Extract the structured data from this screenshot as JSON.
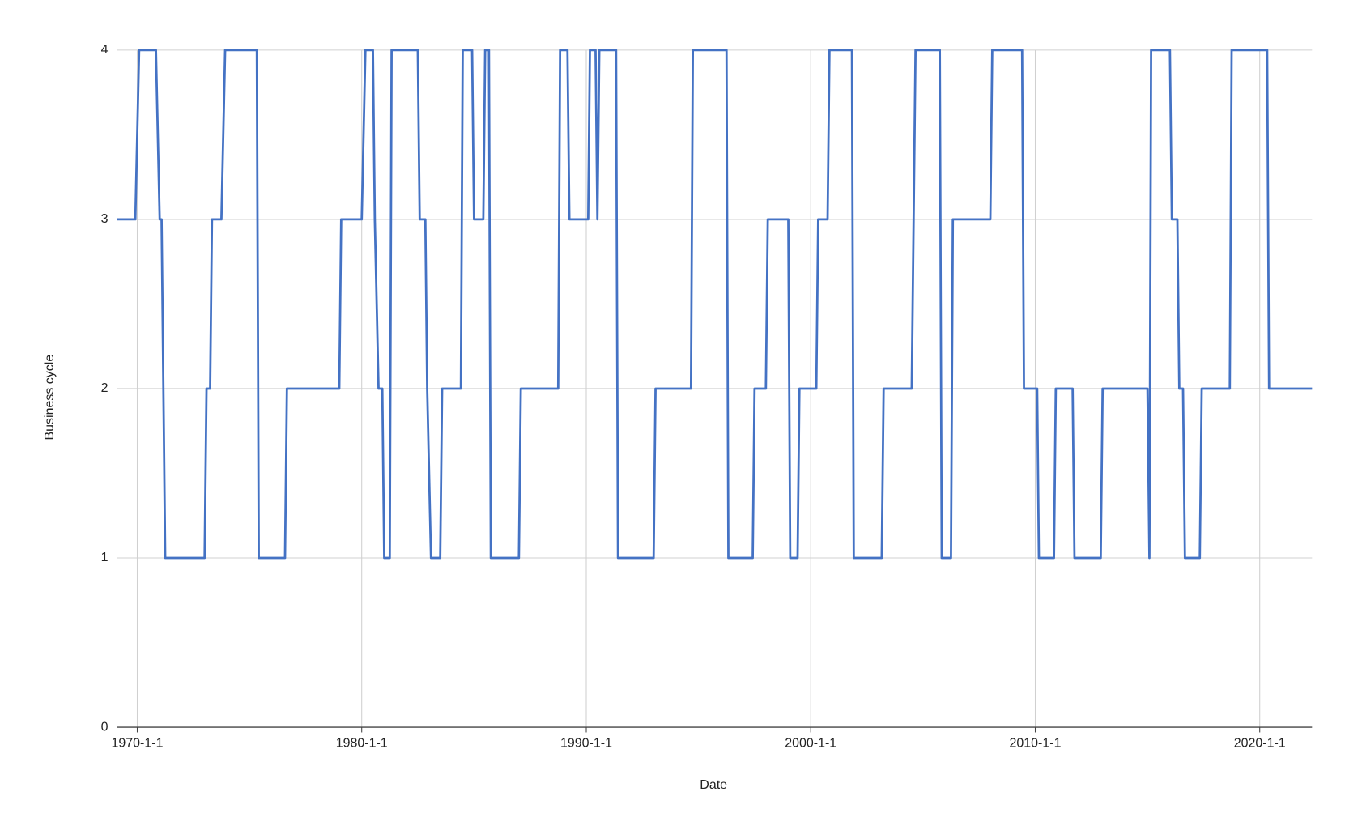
{
  "chart_data": {
    "type": "line",
    "x_label": "Date",
    "y_label": "Business cycle",
    "color": "#4472c4",
    "grid": true,
    "xlim": [
      "1969-2-1",
      "2022-5-1"
    ],
    "xticks": [
      "1970-1-1",
      "1980-1-1",
      "1990-1-1",
      "2000-1-1",
      "2010-1-1",
      "2020-1-1"
    ],
    "ylim": [
      0,
      4
    ],
    "yticks": [
      0,
      1,
      2,
      3,
      4
    ],
    "x": [
      "1969-2-1",
      "1969-12-1",
      "1970-2-1",
      "1970-11-1",
      "1971-1-1",
      "1971-2-1",
      "1971-4-1",
      "1973-1-1",
      "1973-2-1",
      "1973-4-1",
      "1973-5-1",
      "1973-10-1",
      "1973-12-1",
      "1975-5-1",
      "1975-6-1",
      "1976-8-1",
      "1976-9-1",
      "1979-1-1",
      "1979-2-1",
      "1980-1-1",
      "1980-3-1",
      "1980-7-1",
      "1980-8-1",
      "1980-10-1",
      "1980-12-1",
      "1981-1-1",
      "1981-4-1",
      "1981-5-1",
      "1982-7-1",
      "1982-8-1",
      "1982-11-1",
      "1982-12-1",
      "1983-2-1",
      "1983-7-1",
      "1983-8-1",
      "1984-6-1",
      "1984-7-1",
      "1984-12-1",
      "1985-1-1",
      "1985-6-1",
      "1985-7-1",
      "1985-9-1",
      "1985-10-1",
      "1987-1-1",
      "1987-2-1",
      "1988-10-1",
      "1988-11-1",
      "1989-3-1",
      "1989-4-1",
      "1990-2-1",
      "1990-3-1",
      "1990-6-1",
      "1990-7-1",
      "1990-8-1",
      "1991-5-1",
      "1991-6-1",
      "1993-1-1",
      "1993-2-1",
      "1994-9-1",
      "1994-10-1",
      "1996-4-1",
      "1996-5-1",
      "1997-6-1",
      "1997-7-1",
      "1998-1-1",
      "1998-2-1",
      "1999-1-1",
      "1999-2-1",
      "1999-6-1",
      "1999-7-1",
      "2000-4-1",
      "2000-5-1",
      "2000-10-1",
      "2000-11-1",
      "2001-11-1",
      "2001-12-1",
      "2003-3-1",
      "2003-4-1",
      "2004-7-1",
      "2004-8-1",
      "2004-9-1",
      "2005-10-1",
      "2005-11-1",
      "2006-4-1",
      "2006-5-1",
      "2008-1-1",
      "2008-2-1",
      "2009-6-1",
      "2009-7-1",
      "2010-2-1",
      "2010-3-1",
      "2010-11-1",
      "2010-12-1",
      "2011-9-1",
      "2011-10-1",
      "2012-12-1",
      "2013-1-1",
      "2015-1-1",
      "2015-2-1",
      "2015-3-1",
      "2016-1-1",
      "2016-2-1",
      "2016-5-1",
      "2016-6-1",
      "2016-8-1",
      "2016-9-1",
      "2017-5-1",
      "2017-6-1",
      "2018-9-1",
      "2018-10-1",
      "2020-5-1",
      "2020-6-1",
      "2022-5-1"
    ],
    "values": [
      3,
      3,
      4,
      4,
      3,
      3,
      1,
      1,
      2,
      2,
      3,
      3,
      4,
      4,
      1,
      1,
      2,
      2,
      3,
      3,
      4,
      4,
      3,
      2,
      2,
      1,
      1,
      4,
      4,
      3,
      3,
      2,
      1,
      1,
      2,
      2,
      4,
      4,
      3,
      3,
      4,
      4,
      1,
      1,
      2,
      2,
      4,
      4,
      3,
      3,
      4,
      4,
      3,
      4,
      4,
      1,
      1,
      2,
      2,
      4,
      4,
      1,
      1,
      2,
      2,
      3,
      3,
      1,
      1,
      2,
      2,
      3,
      3,
      4,
      4,
      1,
      1,
      2,
      2,
      3,
      4,
      4,
      1,
      1,
      3,
      3,
      4,
      4,
      2,
      2,
      1,
      1,
      2,
      2,
      1,
      1,
      2,
      2,
      1,
      4,
      4,
      3,
      3,
      2,
      2,
      1,
      1,
      2,
      2,
      4,
      4,
      2,
      2
    ]
  }
}
